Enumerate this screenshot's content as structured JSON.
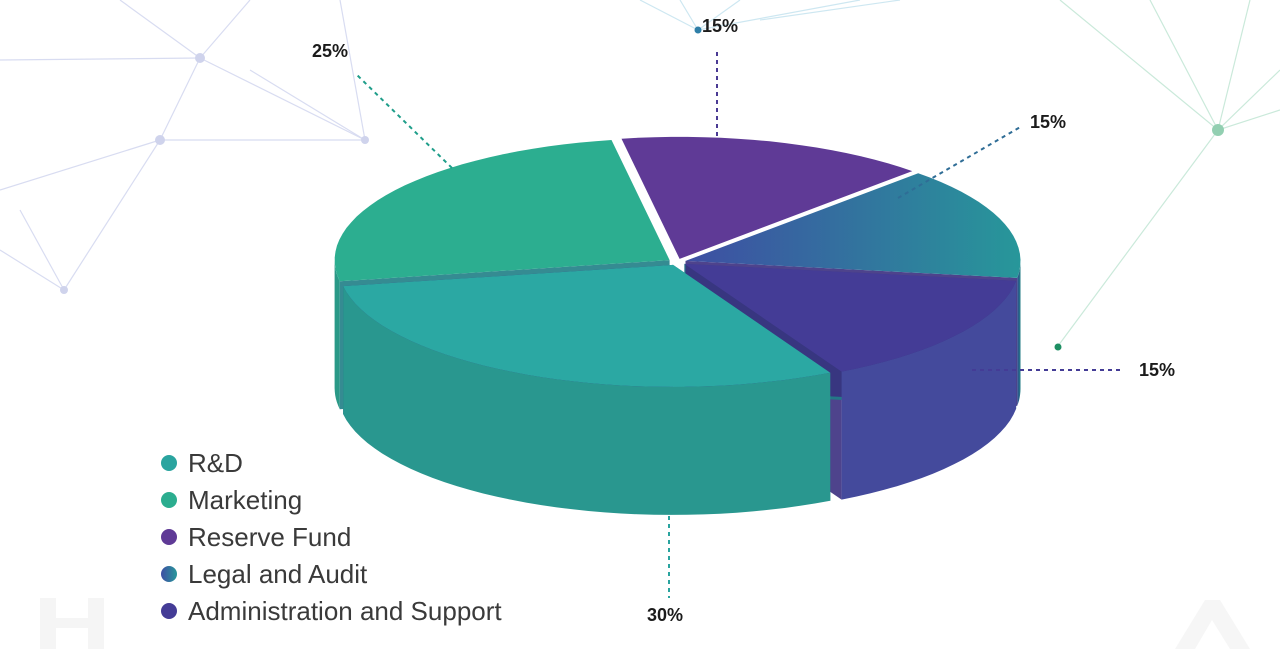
{
  "chart_data": {
    "type": "pie",
    "title": "",
    "slices": [
      {
        "label": "R&D",
        "value": 30,
        "display": "30%",
        "color": "#2aa49f"
      },
      {
        "label": "Marketing",
        "value": 25,
        "display": "25%",
        "color": "#2bad8f"
      },
      {
        "label": "Reserve Fund",
        "value": 15,
        "display": "15%",
        "color": "#5f3a96"
      },
      {
        "label": "Legal and Audit",
        "value": 15,
        "display": "15%",
        "color": "#2f6d96"
      },
      {
        "label": "Administration and Support",
        "value": 15,
        "display": "15%",
        "color": "#443c96"
      }
    ],
    "legend_placement": "bottom-left"
  },
  "legend": [
    {
      "label": "R&D",
      "color": "#2aa49f"
    },
    {
      "label": "Marketing",
      "color": "#2bad8f"
    },
    {
      "label": "Reserve Fund",
      "color": "#5f3a96"
    },
    {
      "label": "Legal and Audit",
      "color": "#2f6d96"
    },
    {
      "label": "Administration and Support",
      "color": "#443c96"
    }
  ]
}
